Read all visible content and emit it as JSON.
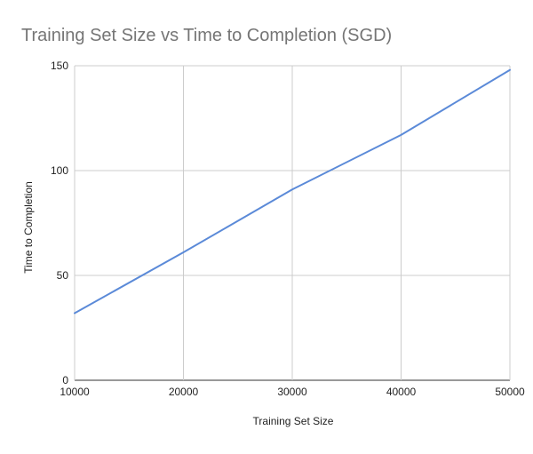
{
  "chart_data": {
    "type": "line",
    "title": "Training Set Size vs Time to Completion (SGD)",
    "xlabel": "Training Set Size",
    "ylabel": "Time to Completion",
    "x": [
      10000,
      20000,
      30000,
      40000,
      50000
    ],
    "series": [
      {
        "values": [
          32,
          61,
          91,
          117,
          148
        ],
        "color": "#5b8ad8"
      }
    ],
    "xlim": [
      10000,
      50000
    ],
    "ylim": [
      0,
      150
    ],
    "xticks": [
      "10000",
      "20000",
      "30000",
      "40000",
      "50000"
    ],
    "yticks": [
      "0",
      "50",
      "100",
      "150"
    ],
    "grid": true,
    "legend": "none"
  },
  "colors": {
    "gridline": "#cccccc",
    "title": "#757575",
    "text": "#222222"
  }
}
